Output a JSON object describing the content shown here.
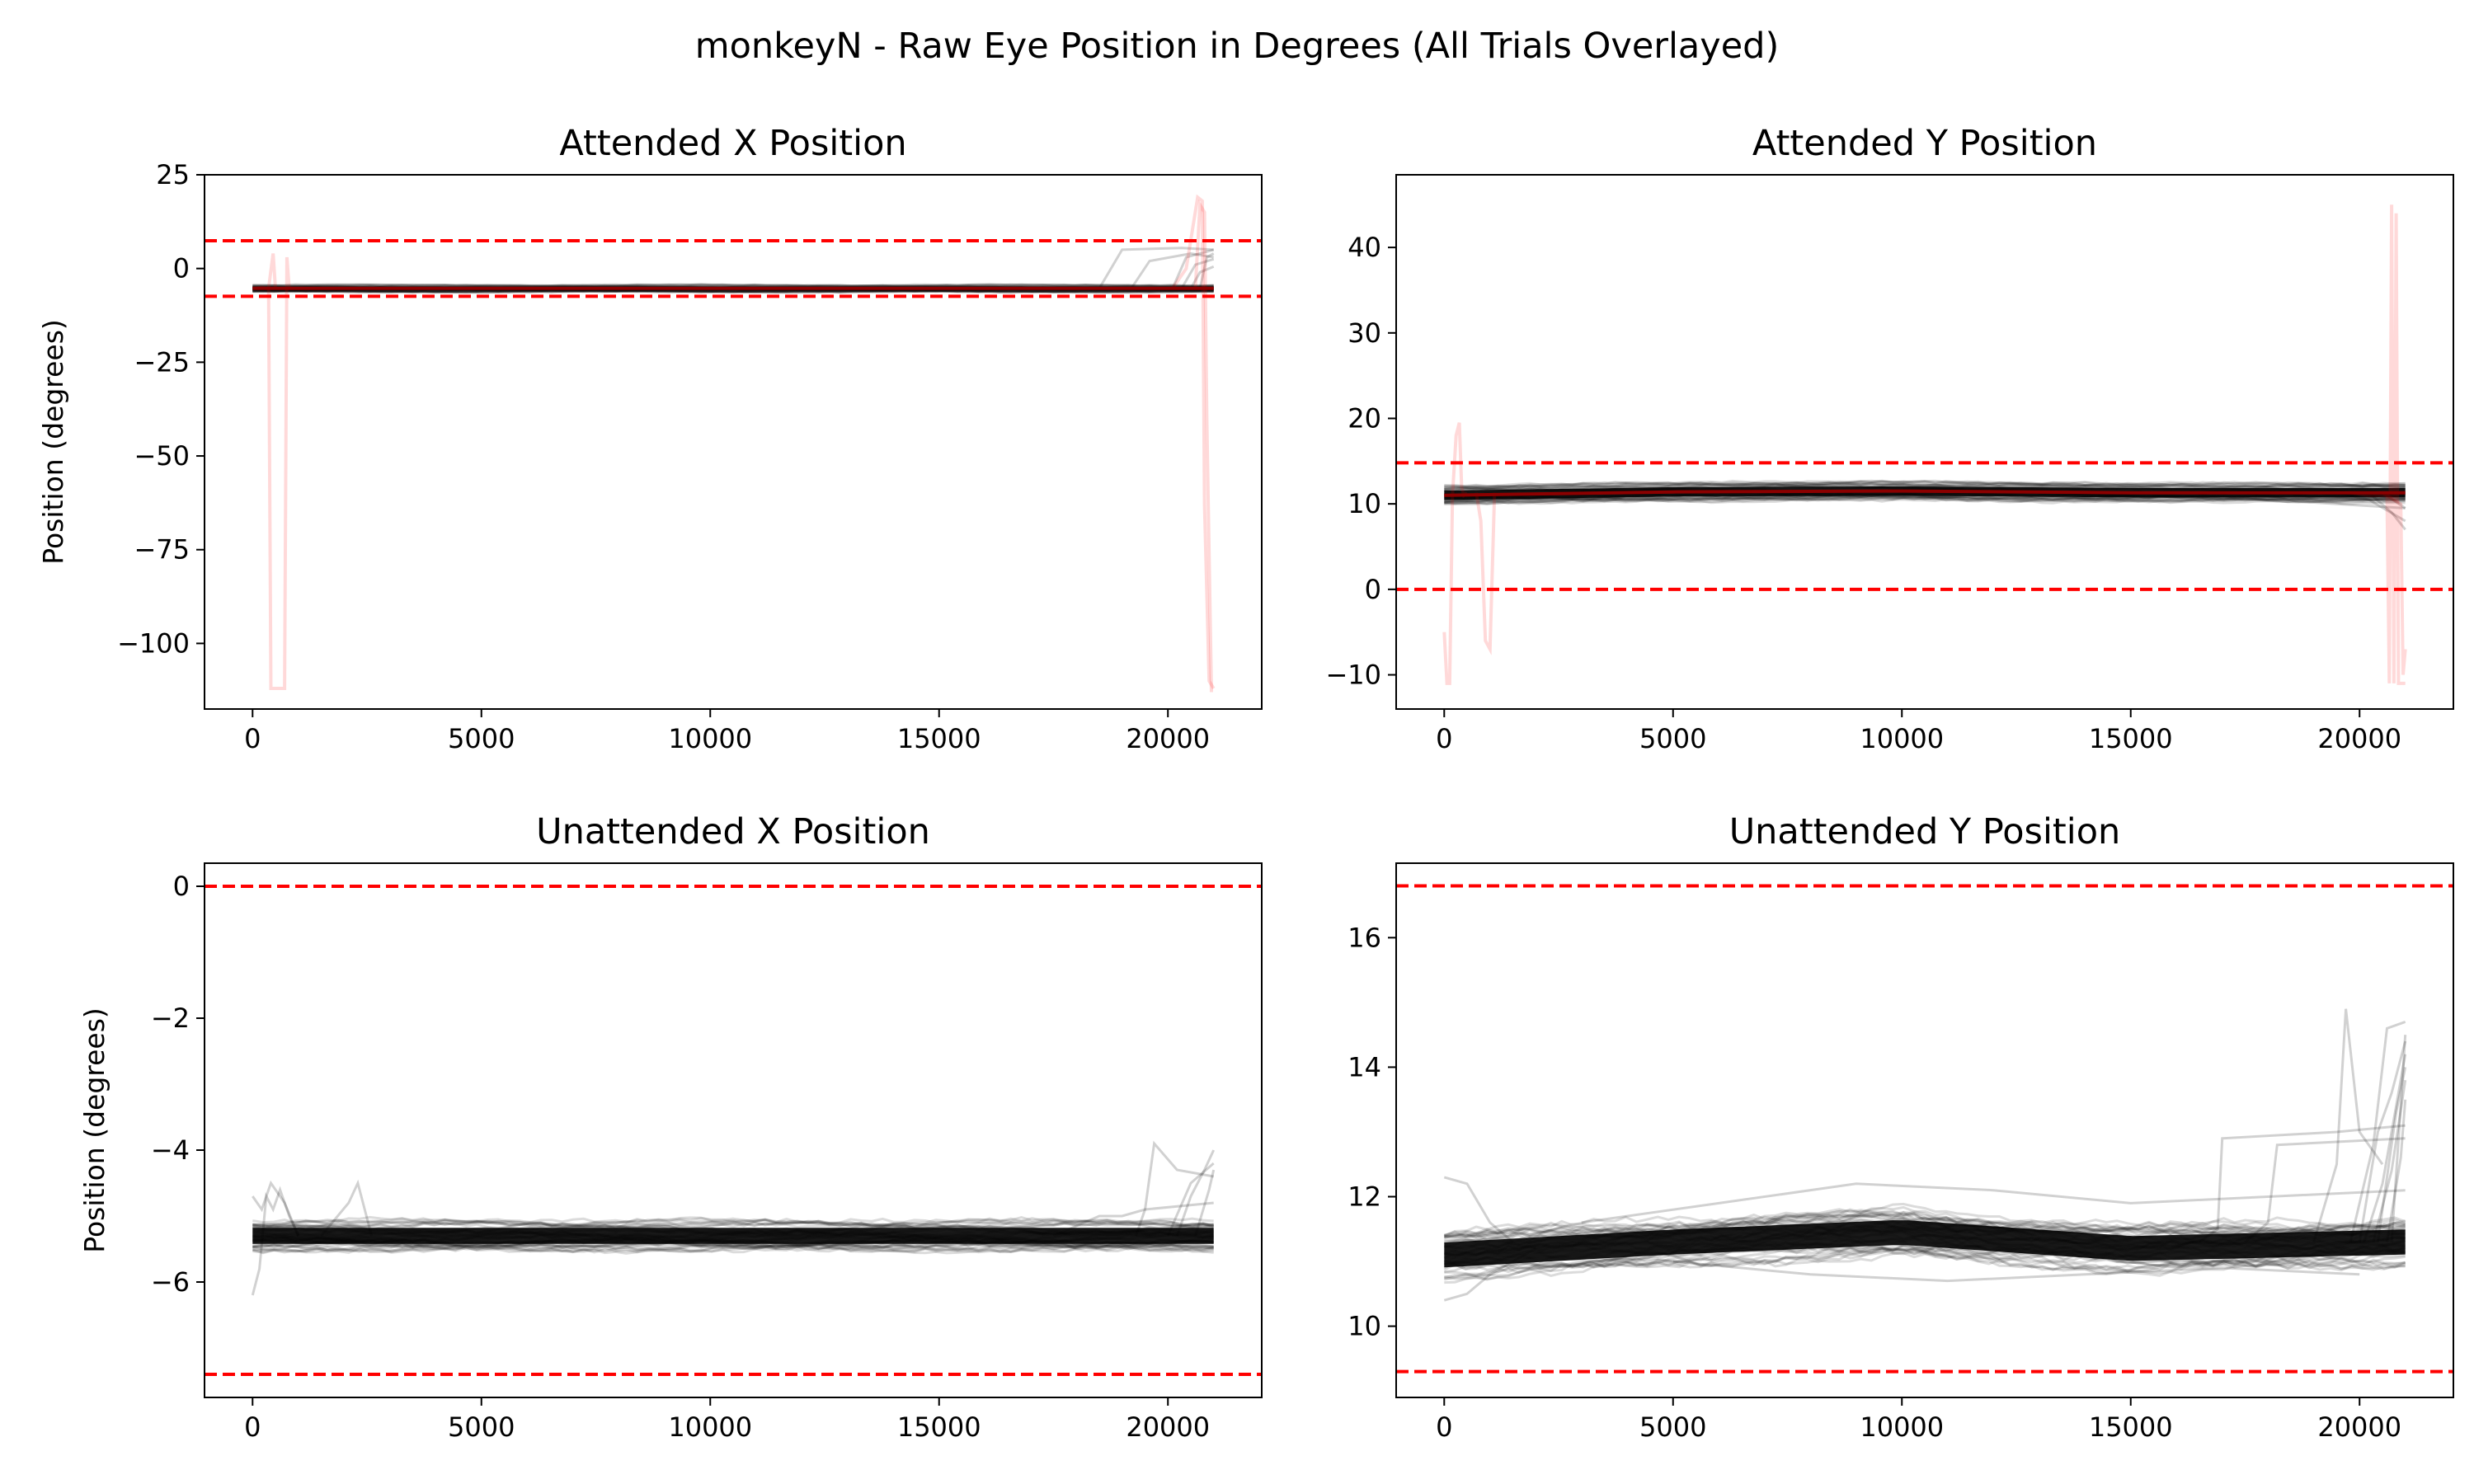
{
  "figure_title": "monkeyN - Raw Eye Position in Degrees (All Trials Overlayed)",
  "colors": {
    "trace": "#000000",
    "outlier_trace": "#ff0000",
    "mean_attended": "#8b0000",
    "threshold": "#ff0000"
  },
  "chart_data": [
    {
      "type": "line",
      "title": "Attended X Position",
      "xlabel": "",
      "ylabel": "Position (degrees)",
      "xlim": [
        -1050,
        22050
      ],
      "ylim": [
        -117.5,
        25
      ],
      "xticks": [
        0,
        5000,
        10000,
        15000,
        20000
      ],
      "xtick_labels": [
        "0",
        "5000",
        "10000",
        "15000",
        "20000"
      ],
      "yticks": [
        25,
        0,
        -25,
        -50,
        -75,
        -100
      ],
      "ytick_labels": [
        "25",
        "0",
        "−25",
        "−50",
        "−75",
        "−100"
      ],
      "thresholds": [
        7.4,
        -7.4
      ],
      "grid": false,
      "band": {
        "x": [
          0,
          21000
        ],
        "center": -5.3,
        "half_width": 0.9
      },
      "tail_traces": [
        {
          "x": [
            18500,
            19000,
            20300,
            21000
          ],
          "y": [
            -5.3,
            5,
            5.5,
            5
          ]
        },
        {
          "x": [
            19200,
            19600,
            20500,
            21000
          ],
          "y": [
            -5.3,
            2,
            4,
            3
          ]
        },
        {
          "x": [
            20100,
            20400,
            21000
          ],
          "y": [
            -5.3,
            3,
            5
          ]
        },
        {
          "x": [
            20300,
            20600,
            21000
          ],
          "y": [
            -5.3,
            1,
            2.5
          ]
        },
        {
          "x": [
            20500,
            20700,
            21000
          ],
          "y": [
            -5.3,
            -1,
            0.5
          ]
        },
        {
          "x": [
            20700,
            20850,
            21000
          ],
          "y": [
            -5.3,
            3,
            4
          ]
        }
      ],
      "outlier_traces": [
        {
          "x": [
            0,
            200,
            350,
            400,
            450,
            650,
            700,
            750,
            800
          ],
          "y": [
            -5.3,
            -5,
            -5.3,
            -112,
            -112,
            -112,
            -112,
            3,
            -5.3
          ]
        },
        {
          "x": [
            350,
            450,
            500
          ],
          "y": [
            -5.3,
            4,
            -5.3
          ]
        },
        {
          "x": [
            20100,
            20400,
            20650,
            20750,
            20800,
            20900,
            21000
          ],
          "y": [
            -5.3,
            0,
            19,
            18,
            -63,
            -110,
            -112
          ]
        },
        {
          "x": [
            20600,
            20700,
            20800,
            20850,
            20950
          ],
          "y": [
            -5.3,
            17,
            15,
            -40,
            -113
          ]
        }
      ],
      "mean_line": {
        "x": [
          0,
          21000
        ],
        "y": [
          -5.3,
          -5.3
        ]
      }
    },
    {
      "type": "line",
      "title": "Attended Y Position",
      "xlabel": "",
      "ylabel": "",
      "xlim": [
        -1050,
        22050
      ],
      "ylim": [
        -14,
        48.5
      ],
      "xticks": [
        0,
        5000,
        10000,
        15000,
        20000
      ],
      "xtick_labels": [
        "0",
        "5000",
        "10000",
        "15000",
        "20000"
      ],
      "yticks": [
        -10,
        0,
        10,
        20,
        30,
        40
      ],
      "ytick_labels": [
        "−10",
        "0",
        "10",
        "20",
        "30",
        "40"
      ],
      "thresholds": [
        14.8,
        0
      ],
      "grid": false,
      "band": {
        "x": [
          0,
          21000
        ],
        "center": 11.3,
        "half_width": 1.0
      },
      "tail_traces": [
        {
          "x": [
            17500,
            18200,
            18600,
            19500,
            21000
          ],
          "y": [
            11.3,
            10.8,
            10.3,
            10,
            9.5
          ]
        },
        {
          "x": [
            19500,
            20200,
            21000
          ],
          "y": [
            11.3,
            10.5,
            8
          ]
        },
        {
          "x": [
            20200,
            20700,
            21000
          ],
          "y": [
            11.3,
            9,
            7
          ]
        },
        {
          "x": [
            20500,
            21000
          ],
          "y": [
            11.3,
            9.5
          ]
        }
      ],
      "outlier_traces": [
        {
          "x": [
            0,
            60,
            120,
            180,
            260,
            330,
            380,
            430,
            500
          ],
          "y": [
            -5,
            -11,
            -11,
            11,
            18,
            19.5,
            12,
            11,
            11.3
          ]
        },
        {
          "x": [
            700,
            800,
            900,
            1000,
            1100
          ],
          "y": [
            11.3,
            8,
            -6,
            -7,
            11.3
          ]
        },
        {
          "x": [
            19800,
            20200,
            20600,
            20650,
            20700,
            20750,
            20800,
            20850,
            21000
          ],
          "y": [
            11.3,
            11,
            11,
            -11,
            45,
            -11,
            44,
            -11,
            -11
          ]
        },
        {
          "x": [
            20500,
            20900,
            20950,
            21000
          ],
          "y": [
            11.3,
            10,
            -10,
            -7
          ]
        }
      ],
      "mean_line": {
        "x": [
          0,
          5000,
          10000,
          15000,
          21000
        ],
        "y": [
          11.0,
          11.4,
          11.5,
          11.3,
          11.3
        ]
      }
    },
    {
      "type": "line",
      "title": "Unattended X Position",
      "xlabel": "",
      "ylabel": "Position (degrees)",
      "xlim": [
        -1050,
        22050
      ],
      "ylim": [
        -7.75,
        0.35
      ],
      "xticks": [
        0,
        5000,
        10000,
        15000,
        20000
      ],
      "xtick_labels": [
        "0",
        "5000",
        "10000",
        "15000",
        "20000"
      ],
      "yticks": [
        0,
        -2,
        -4,
        -6
      ],
      "ytick_labels": [
        "0",
        "−2",
        "−4",
        "−6"
      ],
      "thresholds": [
        0,
        -7.4
      ],
      "grid": false,
      "band": {
        "x": [
          0,
          21000
        ],
        "center": -5.3,
        "half_width": 0.22
      },
      "tail_traces": [
        {
          "x": [
            0,
            150,
            300,
            450,
            600,
            800,
            1000
          ],
          "y": [
            -6.2,
            -5.8,
            -4.7,
            -4.9,
            -4.6,
            -5.0,
            -5.3
          ]
        },
        {
          "x": [
            0,
            200,
            400,
            700,
            1000
          ],
          "y": [
            -4.7,
            -4.9,
            -4.5,
            -4.8,
            -5.3
          ]
        },
        {
          "x": [
            1500,
            2100,
            2300,
            2600
          ],
          "y": [
            -5.3,
            -4.8,
            -4.5,
            -5.3
          ]
        },
        {
          "x": [
            17500,
            18500,
            19000,
            19500,
            21000
          ],
          "y": [
            -5.3,
            -5.0,
            -5.0,
            -4.9,
            -4.8
          ]
        },
        {
          "x": [
            19300,
            19500,
            19700,
            20200,
            21000
          ],
          "y": [
            -5.3,
            -4.9,
            -3.9,
            -4.3,
            -4.4
          ]
        },
        {
          "x": [
            20200,
            20500,
            20800,
            21000
          ],
          "y": [
            -5.3,
            -4.7,
            -4.3,
            -4.0
          ]
        },
        {
          "x": [
            20000,
            20500,
            21000
          ],
          "y": [
            -5.3,
            -4.5,
            -4.2
          ]
        },
        {
          "x": [
            20600,
            20900,
            21000
          ],
          "y": [
            -5.3,
            -4.6,
            -4.3
          ]
        }
      ],
      "outlier_traces": [],
      "mean_line": {
        "x": [
          0,
          21000
        ],
        "y": [
          -5.3,
          -5.3
        ]
      }
    },
    {
      "type": "line",
      "title": "Unattended Y Position",
      "xlabel": "",
      "ylabel": "",
      "xlim": [
        -1050,
        22050
      ],
      "ylim": [
        8.9,
        17.15
      ],
      "xticks": [
        0,
        5000,
        10000,
        15000,
        20000
      ],
      "xtick_labels": [
        "0",
        "5000",
        "10000",
        "15000",
        "20000"
      ],
      "yticks": [
        10,
        12,
        14,
        16
      ],
      "ytick_labels": [
        "10",
        "12",
        "14",
        "16"
      ],
      "thresholds": [
        16.8,
        9.3
      ],
      "grid": false,
      "band": {
        "x": [
          0,
          21000
        ],
        "center": 11.25,
        "half_width": 0.35
      },
      "tail_traces": [
        {
          "x": [
            0,
            500,
            1000,
            1500
          ],
          "y": [
            12.3,
            12.2,
            11.6,
            11.3
          ]
        },
        {
          "x": [
            0,
            500,
            1000,
            2000
          ],
          "y": [
            10.4,
            10.5,
            10.8,
            11.2
          ]
        },
        {
          "x": [
            3000,
            6000,
            9000,
            12000,
            15000,
            18000,
            21000
          ],
          "y": [
            11.6,
            11.9,
            12.2,
            12.1,
            11.9,
            12.0,
            12.1
          ]
        },
        {
          "x": [
            5000,
            8000,
            11000,
            14000,
            17000,
            20000
          ],
          "y": [
            11.0,
            10.8,
            10.7,
            10.8,
            10.9,
            10.8
          ]
        },
        {
          "x": [
            16500,
            16900,
            17000,
            19500,
            21000
          ],
          "y": [
            11.3,
            11.5,
            12.9,
            13.0,
            13.1
          ]
        },
        {
          "x": [
            17500,
            18000,
            18200,
            21000
          ],
          "y": [
            11.3,
            11.6,
            12.8,
            12.9
          ]
        },
        {
          "x": [
            19000,
            19500,
            19700,
            20000,
            20500
          ],
          "y": [
            11.3,
            12.5,
            14.9,
            13.0,
            12.5
          ]
        },
        {
          "x": [
            19800,
            20300,
            20600,
            21000
          ],
          "y": [
            11.3,
            12.8,
            14.6,
            14.7
          ]
        },
        {
          "x": [
            20000,
            20400,
            20700,
            21000
          ],
          "y": [
            11.3,
            13.0,
            13.6,
            14.4
          ]
        },
        {
          "x": [
            20100,
            20500,
            21000
          ],
          "y": [
            11.3,
            12.2,
            14.2
          ]
        },
        {
          "x": [
            20300,
            20700,
            21000
          ],
          "y": [
            11.3,
            12.4,
            13.8
          ]
        },
        {
          "x": [
            20400,
            20800,
            21000
          ],
          "y": [
            11.3,
            13.3,
            14.0
          ]
        },
        {
          "x": [
            20600,
            20900,
            21000
          ],
          "y": [
            11.3,
            12.6,
            13.5
          ]
        },
        {
          "x": [
            20700,
            20900,
            21000
          ],
          "y": [
            11.3,
            13.4,
            14.5
          ]
        }
      ],
      "outlier_traces": [],
      "mean_line": {
        "x": [
          0,
          5000,
          10000,
          15000,
          21000
        ],
        "y": [
          11.1,
          11.3,
          11.45,
          11.2,
          11.3
        ]
      }
    }
  ]
}
